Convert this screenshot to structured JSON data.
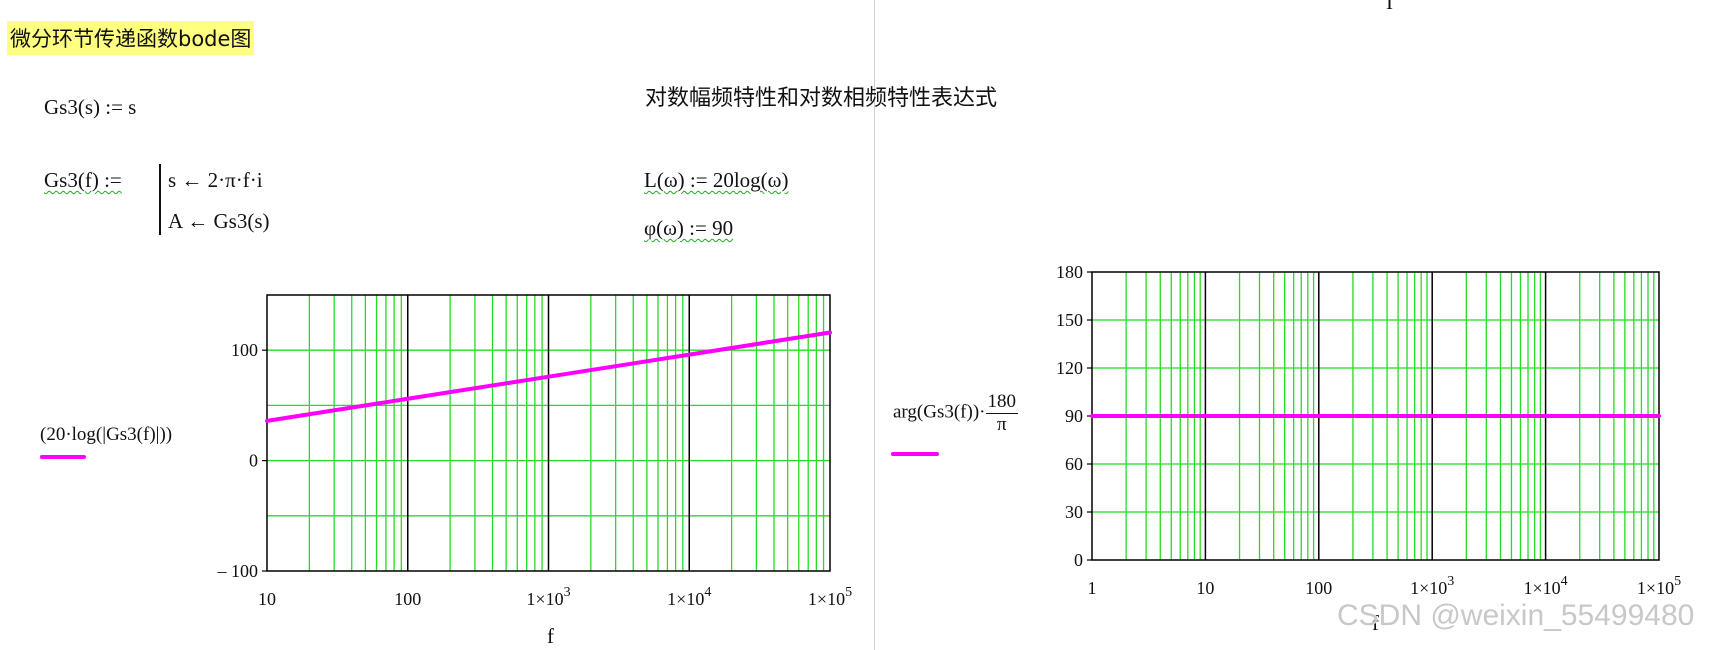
{
  "worksheet": {
    "title": "微分环节传递函数bode图",
    "section_heading": "对数幅频特性和对数相频特性表达式",
    "top_fragment": "I",
    "def_gs3s": "Gs3(s) := s",
    "def_gs3f_name": "Gs3(f) :=",
    "prog_line1": "s ← 2·π·f·i",
    "prog_line2": "A ← Gs3(s)",
    "def_L": "L(ω) := 20log(ω)",
    "def_phi": "φ(ω) := 90"
  },
  "magnitude_plot": {
    "y_expression": "(20·log(|Gs3(f)|))",
    "x_variable": "f",
    "colors": {
      "grid_minor": "#22dd22",
      "grid_major": "#000000",
      "trace": "#ff00ff"
    }
  },
  "phase_plot": {
    "y_expression_prefix": "arg(Gs3(f))·",
    "y_expression_num": "180",
    "y_expression_den": "π",
    "x_variable": "f"
  },
  "watermark": "CSDN @weixin_55499480",
  "chart_data": [
    {
      "type": "line",
      "x_scale": "log",
      "xlim": [
        10,
        100000
      ],
      "ylim": [
        -100,
        150
      ],
      "x_tick_labels": [
        {
          "v": 10,
          "base": "10"
        },
        {
          "v": 100,
          "base": "100"
        },
        {
          "v": 1000,
          "base": "1×10",
          "exp": "3"
        },
        {
          "v": 10000,
          "base": "1×10",
          "exp": "4"
        },
        {
          "v": 100000,
          "base": "1×10",
          "exp": "5"
        }
      ],
      "y_ticks": [
        -100,
        0,
        100
      ],
      "y_tick_labels": [
        "– 100",
        "0",
        "100"
      ],
      "grid": true,
      "series": [
        {
          "x": [
            10,
            100,
            1000,
            10000,
            100000
          ],
          "y": [
            36,
            56,
            76,
            96,
            116
          ]
        }
      ]
    },
    {
      "type": "line",
      "x_scale": "log",
      "xlim": [
        1,
        100000
      ],
      "ylim": [
        0,
        180
      ],
      "x_tick_labels": [
        {
          "v": 1,
          "base": "1"
        },
        {
          "v": 10,
          "base": "10"
        },
        {
          "v": 100,
          "base": "100"
        },
        {
          "v": 1000,
          "base": "1×10",
          "exp": "3"
        },
        {
          "v": 10000,
          "base": "1×10",
          "exp": "4"
        },
        {
          "v": 100000,
          "base": "1×10",
          "exp": "5"
        }
      ],
      "y_ticks": [
        0,
        30,
        60,
        90,
        120,
        150,
        180
      ],
      "y_tick_labels": [
        "0",
        "30",
        "60",
        "90",
        "120",
        "150",
        "180"
      ],
      "grid": true,
      "series": [
        {
          "x": [
            1,
            100000
          ],
          "y": [
            90,
            90
          ]
        }
      ]
    }
  ]
}
